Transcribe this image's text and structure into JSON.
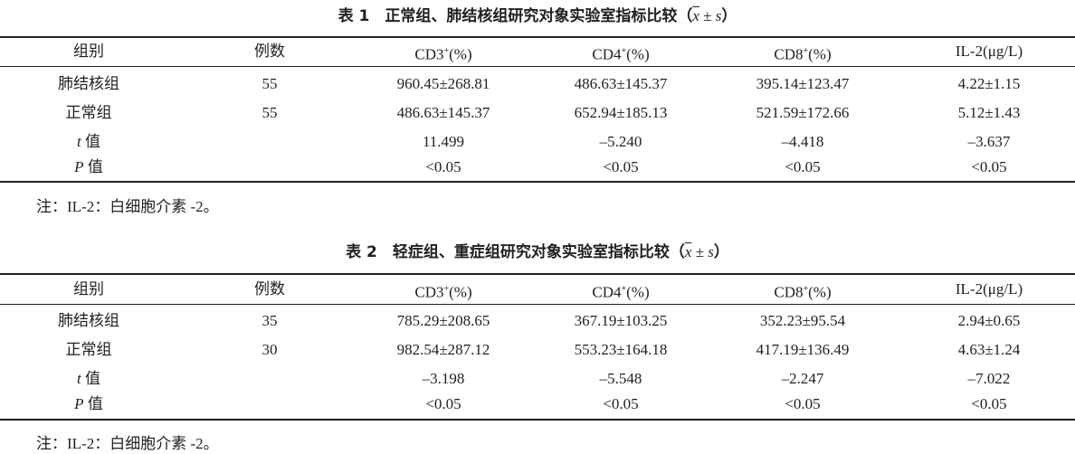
{
  "tables": [
    {
      "label": "表 1",
      "title": "正常组、肺结核组研究对象实验室指标比较",
      "stat": {
        "open": "（",
        "mean": "x",
        "pm": " ± ",
        "sd": "s",
        "close": "）"
      },
      "headers": [
        "组别",
        "例数",
        "CD3+(%)",
        "CD4+(%)",
        "CD8+(%)",
        "IL-2(μg/L)"
      ],
      "rows": [
        [
          "肺结核组",
          "55",
          "960.45±268.81",
          "486.63±145.37",
          "395.14±123.47",
          "4.22±1.15"
        ],
        [
          "正常组",
          "55",
          "486.63±145.37",
          "652.94±185.13",
          "521.59±172.66",
          "5.12±1.43"
        ],
        [
          "t 值",
          "",
          "11.499",
          "–5.240",
          "–4.418",
          "–3.637"
        ],
        [
          "P 值",
          "",
          "<0.05",
          "<0.05",
          "<0.05",
          "<0.05"
        ]
      ],
      "note": "注：IL-2：白细胞介素 -2。"
    },
    {
      "label": "表 2",
      "title": "轻症组、重症组研究对象实验室指标比较",
      "stat": {
        "open": "（",
        "mean": "x",
        "pm": " ± ",
        "sd": "s",
        "close": "）"
      },
      "headers": [
        "组别",
        "例数",
        "CD3+(%)",
        "CD4+(%)",
        "CD8+(%)",
        "IL-2(μg/L)"
      ],
      "rows": [
        [
          "肺结核组",
          "35",
          "785.29±208.65",
          "367.19±103.25",
          "352.23±95.54",
          "2.94±0.65"
        ],
        [
          "正常组",
          "30",
          "982.54±287.12",
          "553.23±164.18",
          "417.19±136.49",
          "4.63±1.24"
        ],
        [
          "t 值",
          "",
          "–3.198",
          "–5.548",
          "–2.247",
          "–7.022"
        ],
        [
          "P 值",
          "",
          "<0.05",
          "<0.05",
          "<0.05",
          "<0.05"
        ]
      ],
      "note": "注：IL-2：白细胞介素 -2。"
    }
  ]
}
